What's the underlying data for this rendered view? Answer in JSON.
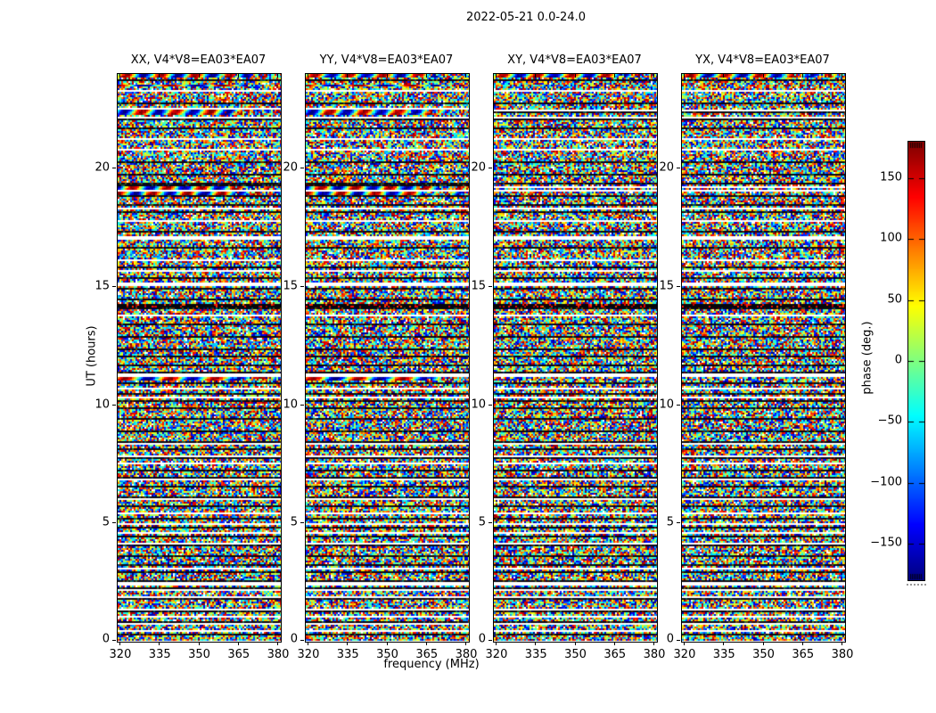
{
  "figure": {
    "title": "2022-05-21 0.0-24.0",
    "background": "#ffffff",
    "axis_color": "#000000"
  },
  "chart_data": {
    "type": "heatmap",
    "title": "2022-05-21 0.0-24.0",
    "description": "Interferometric visibility phase vs frequency and time for baseline V4*V8=EA03*EA07; four polarization products; mostly random phase noise with horizontal time-gap stripes, dark scan-boundary rows, and coherent sinusoidal fringe rows.",
    "panels": [
      {
        "pol": "XX",
        "title": "XX, V4*V8=EA03*EA07"
      },
      {
        "pol": "YY",
        "title": "YY, V4*V8=EA03*EA07"
      },
      {
        "pol": "XY",
        "title": "XY, V4*V8=EA03*EA07"
      },
      {
        "pol": "YX",
        "title": "YX, V4*V8=EA03*EA07"
      }
    ],
    "xlabel": "frequency (MHz)",
    "ylabel": "UT (hours)",
    "xlim": [
      319,
      381
    ],
    "ylim": [
      0,
      24
    ],
    "xticks": [
      320,
      335,
      350,
      365,
      380
    ],
    "yticks": [
      0,
      5,
      10,
      15,
      20
    ],
    "colorbar": {
      "label": "phase (deg.)",
      "range": [
        -180,
        180
      ],
      "ticks": [
        150,
        100,
        50,
        0,
        -50,
        -100,
        -150
      ],
      "colormap": "jet"
    },
    "time_gaps_ut": [
      [
        23.3,
        1
      ],
      [
        22.2,
        1
      ],
      [
        21.3,
        1
      ],
      [
        20.8,
        1
      ],
      [
        18.35,
        1
      ],
      [
        17.8,
        1
      ],
      [
        17.1,
        2
      ],
      [
        16.1,
        1
      ],
      [
        15.7,
        1
      ],
      [
        15.15,
        2
      ],
      [
        13.8,
        1
      ],
      [
        11.3,
        2
      ],
      [
        10.7,
        1
      ],
      [
        10.3,
        1
      ],
      [
        8.3,
        1
      ],
      [
        7.8,
        1
      ],
      [
        7.5,
        1
      ],
      [
        6.8,
        1
      ],
      [
        6.0,
        1
      ],
      [
        5.4,
        1
      ],
      [
        4.9,
        1
      ],
      [
        4.55,
        1
      ],
      [
        4.1,
        1
      ],
      [
        3.0,
        1
      ],
      [
        2.45,
        2
      ],
      [
        2.1,
        1
      ],
      [
        1.8,
        1
      ],
      [
        1.3,
        1
      ],
      [
        1.0,
        1
      ],
      [
        0.7,
        1
      ],
      [
        0.35,
        1
      ]
    ],
    "fringe_features": [
      {
        "ut": 23.98,
        "rows": 2,
        "panels": [
          0,
          1,
          2,
          3
        ],
        "wavelength_mhz": 13,
        "style": "single",
        "gap_in_others": false
      },
      {
        "ut": 23.55,
        "rows": 1,
        "panels": [
          0,
          1
        ],
        "wavelength_mhz": 20,
        "style": "single",
        "gap_in_others": false
      },
      {
        "ut": 22.45,
        "rows": 3,
        "panels": [
          0,
          1
        ],
        "wavelength_mhz": 13,
        "style": "single",
        "gap_in_others": true
      },
      {
        "ut": 19.2,
        "rows": 5,
        "panels": [
          0,
          1
        ],
        "wavelength_mhz": 13,
        "style": "double",
        "gap_in_others": true
      },
      {
        "ut": 11.15,
        "rows": 2,
        "panels": [
          0,
          1
        ],
        "wavelength_mhz": 17,
        "style": "single",
        "gap_in_others": false
      }
    ],
    "dark_band": {
      "ut": 14.2,
      "rows": 2
    }
  }
}
